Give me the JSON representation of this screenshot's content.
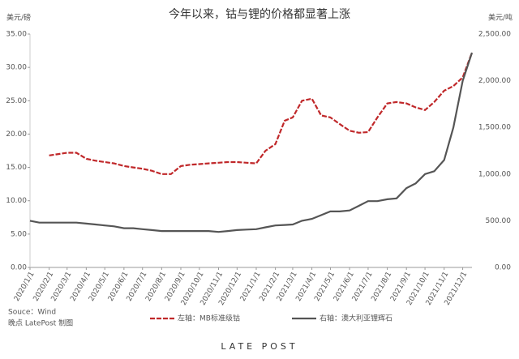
{
  "chart_data": {
    "type": "line",
    "title": "今年以来，钴与锂的价格都显著上涨",
    "y_label": "美元/磅",
    "y2_label": "美元/吨",
    "x": [
      "2020/1/1",
      "2020/1/16",
      "2020/2/1",
      "2020/2/16",
      "2020/3/1",
      "2020/3/16",
      "2020/4/1",
      "2020/4/16",
      "2020/5/1",
      "2020/5/16",
      "2020/6/1",
      "2020/6/16",
      "2020/7/1",
      "2020/7/16",
      "2020/8/1",
      "2020/8/16",
      "2020/9/1",
      "2020/9/16",
      "2020/10/1",
      "2020/10/16",
      "2020/11/1",
      "2020/11/16",
      "2020/12/1",
      "2020/12/16",
      "2021/1/1",
      "2021/1/16",
      "2021/2/1",
      "2021/2/16",
      "2021/3/1",
      "2021/3/16",
      "2021/4/1",
      "2021/4/16",
      "2021/5/1",
      "2021/5/16",
      "2021/6/1",
      "2021/6/16",
      "2021/7/1",
      "2021/7/16",
      "2021/8/1",
      "2021/8/16",
      "2021/9/1",
      "2021/9/16",
      "2021/10/1",
      "2021/10/16",
      "2021/11/1",
      "2021/11/16",
      "2021/12/1",
      "2021/12/16"
    ],
    "series": [
      {
        "name": "左轴：MB标准级钴",
        "color": "#c0282a",
        "dashed": true,
        "values": [
          null,
          null,
          16.8,
          17.0,
          17.2,
          17.2,
          16.3,
          16.0,
          15.8,
          15.6,
          15.2,
          15.0,
          14.8,
          14.5,
          14.0,
          14.0,
          15.2,
          15.4,
          15.5,
          15.6,
          15.7,
          15.8,
          15.8,
          15.7,
          15.6,
          17.5,
          18.5,
          22.0,
          22.5,
          25.0,
          25.3,
          22.8,
          22.5,
          21.5,
          20.5,
          20.2,
          20.3,
          22.5,
          24.6,
          24.8,
          24.6,
          24.0,
          23.6,
          24.8,
          26.5,
          27.2,
          28.5,
          32.2
        ]
      },
      {
        "name": "右轴：澳大利亚锂辉石",
        "color": "#555555",
        "axis": "y2",
        "values": [
          500,
          480,
          480,
          480,
          480,
          480,
          470,
          460,
          450,
          440,
          420,
          420,
          410,
          400,
          390,
          390,
          390,
          390,
          390,
          390,
          380,
          390,
          400,
          405,
          410,
          430,
          450,
          455,
          460,
          500,
          520,
          560,
          600,
          600,
          610,
          660,
          710,
          710,
          730,
          740,
          850,
          900,
          1000,
          1030,
          1150,
          1500,
          2000,
          2300
        ]
      }
    ],
    "xlim": [
      "2020/1/1",
      "2021/12/16"
    ],
    "xticks": [
      "2020/1/1",
      "2020/2/1",
      "2020/3/1",
      "2020/4/1",
      "2020/5/1",
      "2020/6/1",
      "2020/7/1",
      "2020/8/1",
      "2020/9/1",
      "2020/10/1",
      "2020/11/1",
      "2020/12/1",
      "2021/1/1",
      "2021/2/1",
      "2021/3/1",
      "2021/4/1",
      "2021/5/1",
      "2021/6/1",
      "2021/7/1",
      "2021/8/1",
      "2021/9/1",
      "2021/10/1",
      "2021/11/1",
      "2021/12/1"
    ],
    "ylim": [
      0,
      35
    ],
    "yticks": [
      {
        "value": 0,
        "label": "0.00"
      },
      {
        "value": 5,
        "label": "5.00"
      },
      {
        "value": 10,
        "label": "10.00"
      },
      {
        "value": 15,
        "label": "15.00"
      },
      {
        "value": 20,
        "label": "20.00"
      },
      {
        "value": 25,
        "label": "25.00"
      },
      {
        "value": 30,
        "label": "30.00"
      },
      {
        "value": 35,
        "label": "35.00"
      }
    ],
    "y2lim": [
      0,
      2500
    ],
    "y2ticks": [
      {
        "value": 0,
        "label": "0.00"
      },
      {
        "value": 500,
        "label": "500.00"
      },
      {
        "value": 1000,
        "label": "1,000.00"
      },
      {
        "value": 1500,
        "label": "1,500.00"
      },
      {
        "value": 2000,
        "label": "2,000.00"
      },
      {
        "value": 2500,
        "label": "2,500.00"
      }
    ],
    "source": "Souce：Wind",
    "credit": "晚点 LatePost 制图",
    "brand": "LATE POST"
  }
}
